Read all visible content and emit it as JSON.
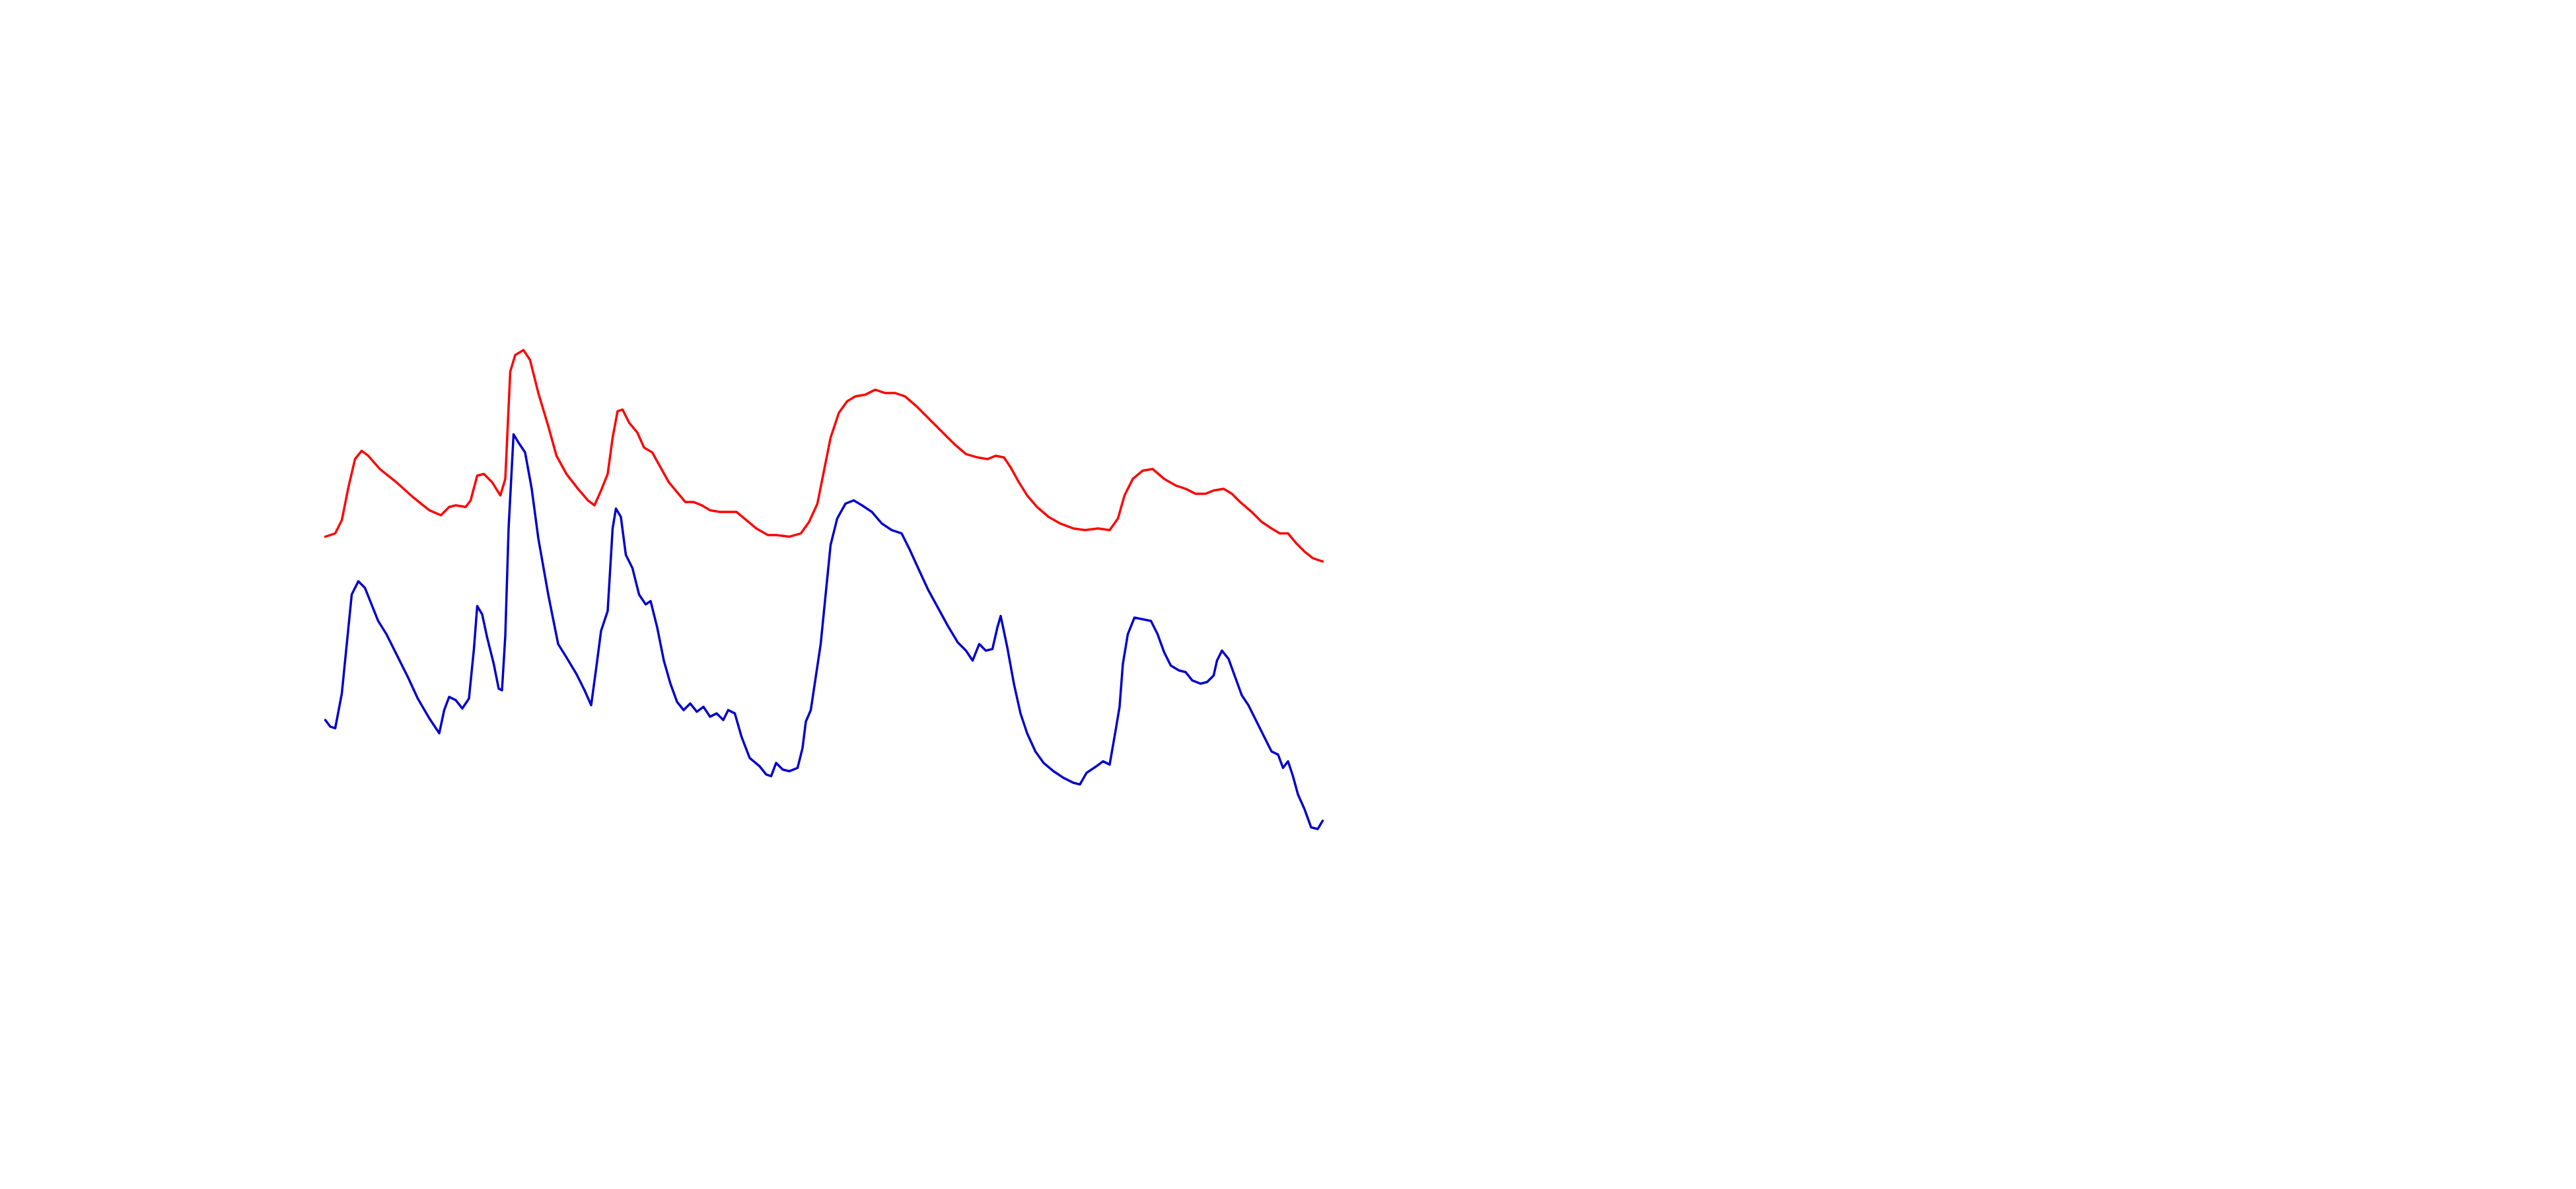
{
  "chart_data": {
    "type": "line",
    "xlim": [
      0,
      1560
    ],
    "ylim": [
      0,
      720
    ],
    "series": [
      {
        "color": "#ff0000",
        "x": [
          197,
          203,
          207,
          211,
          215,
          219,
          223,
          230,
          240,
          250,
          260,
          267,
          272,
          276,
          282,
          285,
          289,
          293,
          298,
          303,
          306,
          309,
          312,
          317,
          321,
          326,
          332,
          337,
          343,
          350,
          356,
          360,
          364,
          368,
          371,
          374,
          377,
          381,
          386,
          390,
          395,
          400,
          405,
          410,
          415,
          420,
          425,
          430,
          436,
          442,
          446,
          452,
          458,
          465,
          470,
          478,
          485,
          490,
          495,
          499,
          503,
          508,
          513,
          518,
          524,
          530,
          536,
          542,
          548,
          555,
          563,
          571,
          578,
          585,
          592,
          598,
          603,
          608,
          612,
          617,
          622,
          628,
          635,
          642,
          650,
          657,
          665,
          672,
          677,
          681,
          686,
          692,
          698,
          705,
          712,
          718,
          724,
          730,
          735,
          741,
          746,
          751,
          758,
          764,
          770,
          775,
          780,
          785,
          790,
          795,
          801
        ],
        "values": [
          395,
          397,
          405,
          425,
          442,
          447,
          444,
          436,
          428,
          419,
          411,
          408,
          413,
          414,
          413,
          417,
          432,
          433,
          428,
          420,
          430,
          495,
          505,
          508,
          502,
          482,
          462,
          444,
          433,
          424,
          417,
          414,
          423,
          433,
          455,
          471,
          472,
          464,
          458,
          449,
          446,
          437,
          428,
          422,
          416,
          416,
          414,
          411,
          410,
          410,
          410,
          405,
          400,
          396,
          396,
          395,
          397,
          404,
          415,
          435,
          455,
          470,
          477,
          480,
          481,
          484,
          482,
          482,
          480,
          474,
          466,
          458,
          451,
          445,
          443,
          442,
          444,
          443,
          437,
          428,
          420,
          413,
          407,
          403,
          400,
          399,
          400,
          399,
          406,
          420,
          430,
          435,
          436,
          430,
          426,
          424,
          421,
          421,
          423,
          424,
          421,
          416,
          410,
          404,
          400,
          397,
          397,
          391,
          386,
          382,
          380
        ]
      },
      {
        "color": "#0000cc",
        "x": [
          197,
          200,
          203,
          207,
          210,
          213,
          217,
          221,
          225,
          229,
          234,
          240,
          247,
          253,
          260,
          266,
          269,
          272,
          276,
          280,
          284,
          287,
          289,
          292,
          295,
          299,
          302,
          304,
          306,
          308,
          311,
          314,
          318,
          322,
          326,
          332,
          338,
          343,
          349,
          354,
          358,
          361,
          364,
          368,
          371,
          373,
          376,
          379,
          383,
          387,
          391,
          394,
          398,
          402,
          406,
          410,
          414,
          418,
          422,
          426,
          430,
          434,
          438,
          441,
          445,
          449,
          454,
          460,
          464,
          467,
          470,
          474,
          478,
          483,
          486,
          488,
          491,
          494,
          497,
          500,
          503,
          507,
          512,
          517,
          522,
          528,
          534,
          540,
          546,
          551,
          556,
          562,
          568,
          574,
          580,
          585,
          589,
          593,
          597,
          601,
          604,
          606,
          610,
          614,
          618,
          622,
          627,
          632,
          638,
          644,
          650,
          654,
          658,
          664,
          668,
          672,
          676,
          678,
          680,
          683,
          687,
          692,
          697,
          701,
          705,
          709,
          714,
          718,
          722,
          727,
          731,
          735,
          737,
          740,
          744,
          748,
          752,
          756,
          761,
          766,
          770,
          774,
          777,
          780,
          783,
          786,
          790,
          794,
          798,
          801
        ],
        "values": [
          284,
          280,
          279,
          300,
          330,
          360,
          368,
          364,
          354,
          344,
          336,
          324,
          310,
          297,
          285,
          276,
          290,
          298,
          296,
          291,
          297,
          327,
          353,
          348,
          334,
          318,
          303,
          302,
          335,
          400,
          457,
          452,
          446,
          424,
          394,
          360,
          330,
          322,
          312,
          302,
          293,
          315,
          338,
          350,
          400,
          412,
          407,
          384,
          376,
          360,
          354,
          356,
          340,
          320,
          306,
          295,
          290,
          294,
          289,
          292,
          286,
          288,
          284,
          290,
          288,
          274,
          261,
          256,
          251,
          250,
          258,
          254,
          253,
          255,
          267,
          283,
          290,
          310,
          330,
          360,
          390,
          406,
          415,
          417,
          414,
          410,
          403,
          399,
          397,
          387,
          376,
          363,
          352,
          341,
          331,
          326,
          320,
          330,
          326,
          327,
          340,
          347,
          328,
          306,
          288,
          276,
          265,
          258,
          253,
          249,
          246,
          245,
          252,
          256,
          259,
          257,
          280,
          292,
          318,
          336,
          346,
          345,
          344,
          336,
          325,
          317,
          314,
          313,
          308,
          306,
          307,
          311,
          320,
          326,
          321,
          310,
          299,
          293,
          283,
          273,
          265,
          263,
          255,
          259,
          250,
          239,
          230,
          219,
          218,
          223
        ]
      }
    ]
  }
}
